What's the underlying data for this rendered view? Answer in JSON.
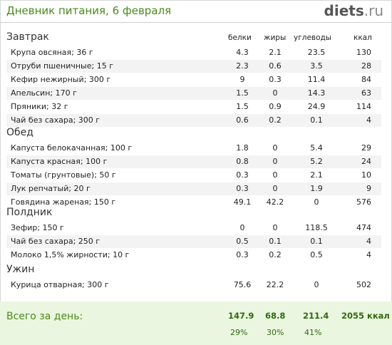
{
  "header": {
    "title": "Дневник питания, 6 февраля",
    "logo_brand": "diets",
    "logo_tld": ".ru"
  },
  "columns": {
    "protein": "белки",
    "fat": "жиры",
    "carbs": "углеводы",
    "kcal": "ккал"
  },
  "sections": [
    {
      "name": "Завтрак",
      "items": [
        {
          "name": "Крупа овсяная; 36 г",
          "protein": "4.3",
          "fat": "2.1",
          "carbs": "23.5",
          "kcal": "130"
        },
        {
          "name": "Отруби пшеничные; 15 г",
          "protein": "2.3",
          "fat": "0.6",
          "carbs": "3.5",
          "kcal": "28"
        },
        {
          "name": "Кефир нежирный; 300 г",
          "protein": "9",
          "fat": "0.3",
          "carbs": "11.4",
          "kcal": "84"
        },
        {
          "name": "Апельсин; 170 г",
          "protein": "1.5",
          "fat": "0",
          "carbs": "14.3",
          "kcal": "63"
        },
        {
          "name": "Пряники; 32 г",
          "protein": "1.5",
          "fat": "0.9",
          "carbs": "24.9",
          "kcal": "114"
        },
        {
          "name": "Чай без сахара; 300 г",
          "protein": "0.6",
          "fat": "0.2",
          "carbs": "0.1",
          "kcal": "4"
        }
      ]
    },
    {
      "name": "Обед",
      "items": [
        {
          "name": "Капуста белокачанная; 100 г",
          "protein": "1.8",
          "fat": "0",
          "carbs": "5.4",
          "kcal": "29"
        },
        {
          "name": "Капуста красная; 100 г",
          "protein": "0.8",
          "fat": "0",
          "carbs": "5.2",
          "kcal": "24"
        },
        {
          "name": "Томаты (грунтовые); 50 г",
          "protein": "0.3",
          "fat": "0",
          "carbs": "2.1",
          "kcal": "10"
        },
        {
          "name": "Лук репчатый; 20 г",
          "protein": "0.3",
          "fat": "0",
          "carbs": "1.9",
          "kcal": "9"
        },
        {
          "name": "Говядина жареная; 150 г",
          "protein": "49.1",
          "fat": "42.2",
          "carbs": "0",
          "kcal": "576"
        }
      ]
    },
    {
      "name": "Полдник",
      "items": [
        {
          "name": "Зефир; 150 г",
          "protein": "0",
          "fat": "0",
          "carbs": "118.5",
          "kcal": "474"
        },
        {
          "name": "Чай без сахара; 250 г",
          "protein": "0.5",
          "fat": "0.1",
          "carbs": "0.1",
          "kcal": "4"
        },
        {
          "name": "Молоко 1,5% жирности; 10 г",
          "protein": "0.3",
          "fat": "0.2",
          "carbs": "0.5",
          "kcal": "4"
        }
      ]
    },
    {
      "name": "Ужин",
      "items": [
        {
          "name": "Курица отварная; 300 г",
          "protein": "75.6",
          "fat": "22.2",
          "carbs": "0",
          "kcal": "502"
        }
      ]
    }
  ],
  "totals": {
    "label": "Всего за день:",
    "protein": "147.9",
    "fat": "68.8",
    "carbs": "211.4",
    "kcal": "2055 ккал",
    "protein_pct": "29%",
    "fat_pct": "30%",
    "carbs_pct": "41%"
  },
  "colors": {
    "title_green": "#4a8a1a",
    "footer_bg": "#eaf6e0",
    "stripe": "#f3f3f3"
  }
}
